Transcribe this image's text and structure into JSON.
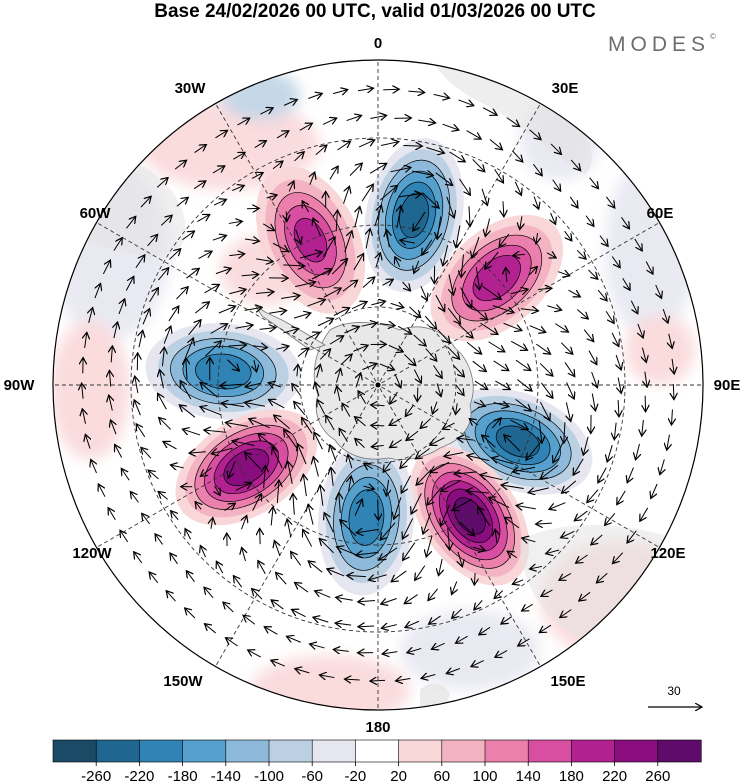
{
  "title": "Base 24/02/2026 00 UTC, valid 01/03/2026 00 UTC",
  "brand": "MODES",
  "brand_mark": "©",
  "longitude_labels": [
    "0",
    "30E",
    "60E",
    "90E",
    "120E",
    "150E",
    "180",
    "150W",
    "120W",
    "90W",
    "60W",
    "30W"
  ],
  "vector_reference": {
    "value": "30",
    "label": "30"
  },
  "colorbar": {
    "tick_labels": [
      "-260",
      "-220",
      "-180",
      "-140",
      "-100",
      "-60",
      "-20",
      "20",
      "60",
      "100",
      "140",
      "180",
      "220",
      "260"
    ],
    "colors": [
      "#1b4a66",
      "#1f6690",
      "#2f83b5",
      "#55a0cc",
      "#8dbada",
      "#bcd0e4",
      "#e5e6f0",
      "#ffffff",
      "#f9d6d8",
      "#f4b3c2",
      "#ec80ac",
      "#d84fa1",
      "#b22190",
      "#8a0d80",
      "#5e0b6c"
    ]
  },
  "map": {
    "projection": "south polar stereographic",
    "anomalies": [
      {
        "name": "pos-30w",
        "lon": -25,
        "lat": -52,
        "value": 180
      },
      {
        "name": "neg-10e",
        "lon": 12,
        "lat": -49,
        "value": -230
      },
      {
        "name": "pos-50e",
        "lon": 48,
        "lat": -52,
        "value": 200
      },
      {
        "name": "neg-90w",
        "lon": -85,
        "lat": -53,
        "value": -200
      },
      {
        "name": "neg-110e",
        "lon": 112,
        "lat": -54,
        "value": -230
      },
      {
        "name": "pos-115w",
        "lon": -122,
        "lat": -53,
        "value": 240
      },
      {
        "name": "pos-145e",
        "lon": 145,
        "lat": -52,
        "value": 270
      },
      {
        "name": "neg-170w",
        "lon": -175,
        "lat": -58,
        "value": -200
      }
    ]
  }
}
